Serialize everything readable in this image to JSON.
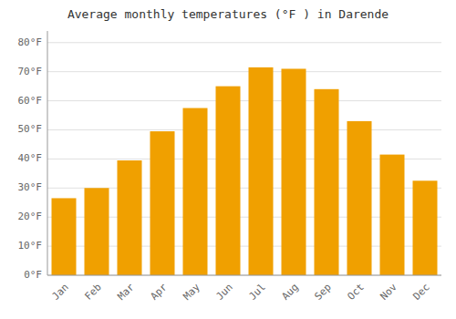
{
  "chart_data": {
    "type": "bar",
    "title": "Average monthly temperatures (°F ) in Darende",
    "categories": [
      "Jan",
      "Feb",
      "Mar",
      "Apr",
      "May",
      "Jun",
      "Jul",
      "Aug",
      "Sep",
      "Oct",
      "Nov",
      "Dec"
    ],
    "values": [
      26.5,
      30.0,
      39.5,
      49.5,
      57.5,
      65.0,
      71.5,
      71.0,
      64.0,
      53.0,
      41.5,
      32.5
    ],
    "color": "#F0A000",
    "ylim": [
      0,
      84
    ],
    "yticks": [
      {
        "value": 0,
        "label": "0°F"
      },
      {
        "value": 10,
        "label": "10°F"
      },
      {
        "value": 20,
        "label": "20°F"
      },
      {
        "value": 30,
        "label": "30°F"
      },
      {
        "value": 40,
        "label": "40°F"
      },
      {
        "value": 50,
        "label": "50°F"
      },
      {
        "value": 60,
        "label": "60°F"
      },
      {
        "value": 70,
        "label": "70°F"
      },
      {
        "value": 80,
        "label": "80°F"
      }
    ],
    "grid": true
  }
}
